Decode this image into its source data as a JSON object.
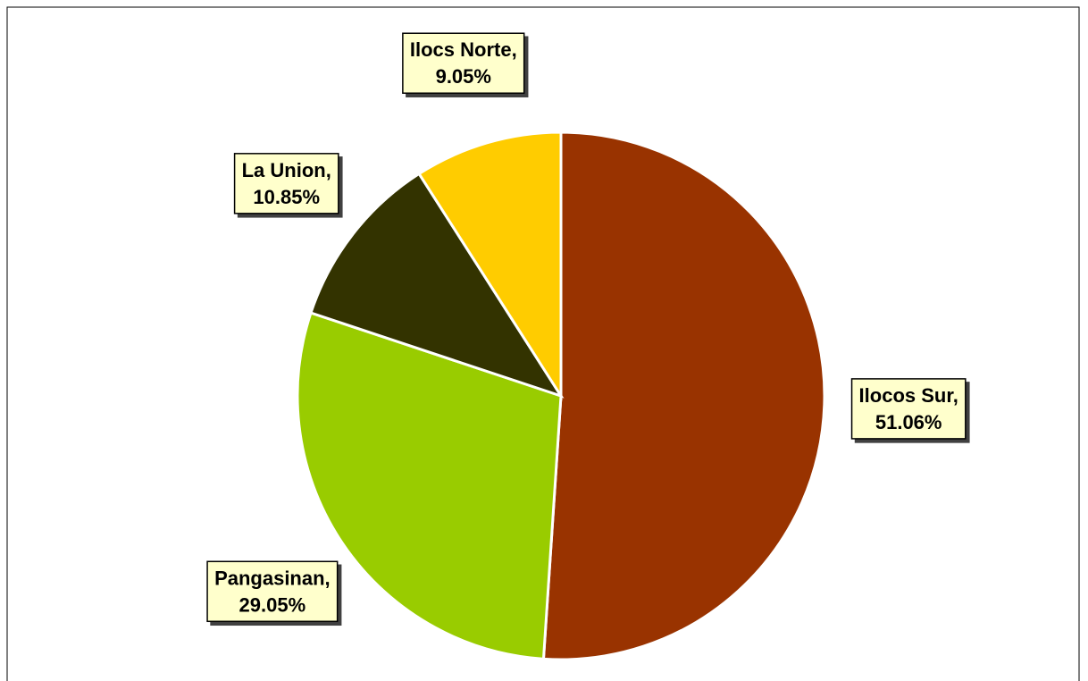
{
  "chart_data": {
    "type": "pie",
    "categories": [
      "Ilocos Sur,",
      "Pangasinan,",
      "La Union,",
      "Ilocs Norte,"
    ],
    "values": [
      51.06,
      29.05,
      10.85,
      9.05
    ],
    "value_labels": [
      "51.06%",
      "29.05%",
      "10.85%",
      "9.05%"
    ],
    "colors": [
      "#993300",
      "#99cc00",
      "#333300",
      "#ffcc00"
    ]
  }
}
